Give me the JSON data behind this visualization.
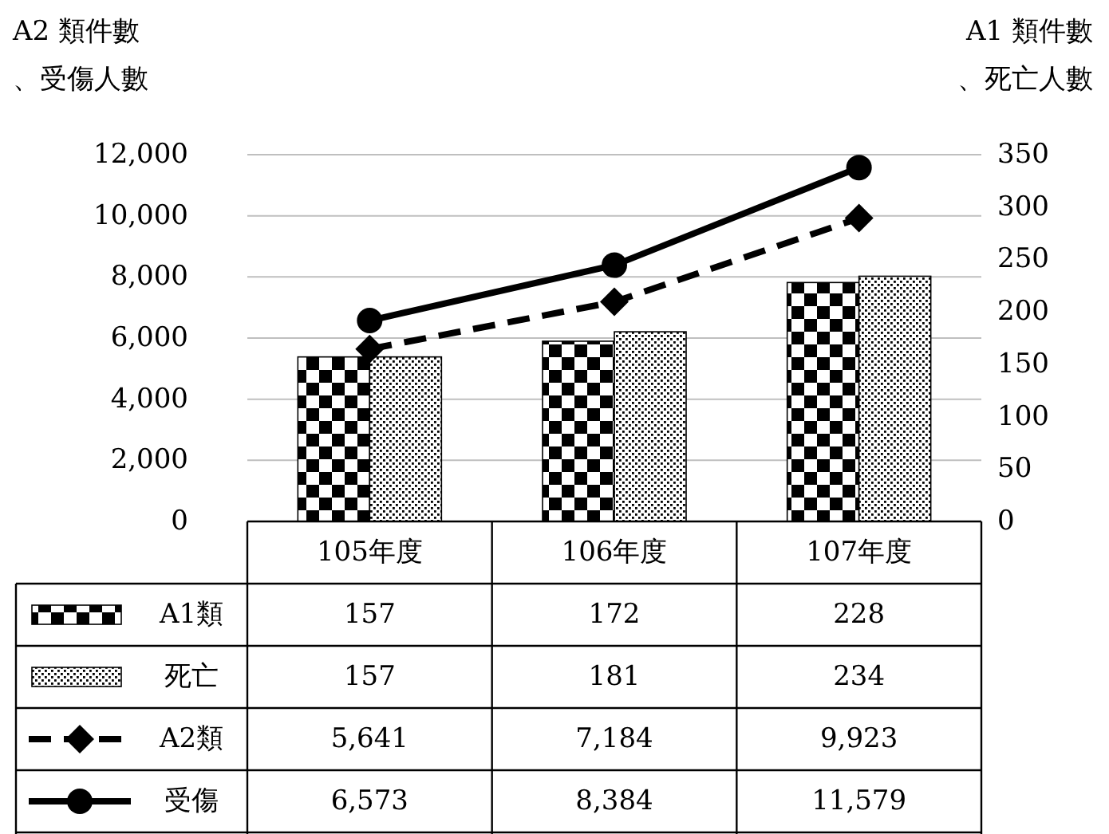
{
  "chart_data": {
    "type": "bar",
    "categories": [
      "105年度",
      "106年度",
      "107年度"
    ],
    "ylabel": "A2 類件數、受傷人數",
    "y2label": "A1 類件數、死亡人數",
    "legend": "bottom left",
    "ylim": [
      0,
      12000
    ],
    "yticks": [
      0,
      {
        "value": 2000,
        "label": "2,000"
      },
      {
        "value": 4000,
        "label": "4,000"
      },
      {
        "value": 6000,
        "label": "6,000"
      },
      {
        "value": 8000,
        "label": "8,000"
      },
      {
        "value": 10000,
        "label": "10,000"
      },
      {
        "value": 12000,
        "label": "12,000"
      }
    ],
    "y2lim": [
      0,
      350
    ],
    "y2ticks": [
      0,
      50,
      100,
      150,
      200,
      250,
      300,
      350
    ],
    "grid": "y",
    "series": [
      {
        "name": "A1類",
        "axis": "y2",
        "color": "#000000",
        "values": [
          157,
          172,
          228
        ],
        "value_labels": [
          "157",
          "172",
          "228"
        ]
      },
      {
        "name": "死亡",
        "axis": "y2",
        "color": "#000000",
        "values": [
          157,
          181,
          234
        ],
        "value_labels": [
          "157",
          "181",
          "234"
        ]
      },
      {
        "name": "A2類",
        "type": "line",
        "axis": "y",
        "color": "#000000",
        "line_style": "dashed",
        "marker": "diamond",
        "values": [
          5641,
          7184,
          9923
        ],
        "value_labels": [
          "5,641",
          "7,184",
          "9,923"
        ]
      },
      {
        "name": "受傷",
        "type": "line",
        "axis": "y",
        "color": "#000000",
        "line_style": "solid",
        "marker": "circle",
        "values": [
          6573,
          8384,
          11579
        ],
        "value_labels": [
          "6,573",
          "8,384",
          "11,579"
        ]
      }
    ]
  }
}
